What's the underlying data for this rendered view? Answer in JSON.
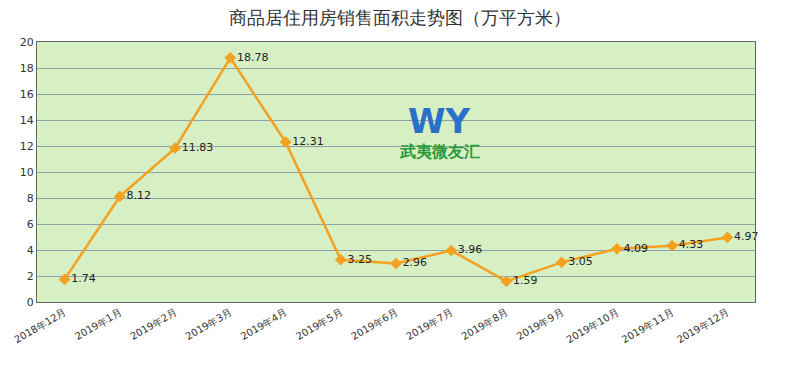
{
  "chart_data": {
    "type": "line",
    "title": "商品居住用房销售面积走势图（万平方米）",
    "categories": [
      "2018年12月",
      "2019年1月",
      "2019年2月",
      "2019年3月",
      "2019年4月",
      "2019年5月",
      "2019年6月",
      "2019年7月",
      "2019年8月",
      "2019年9月",
      "2019年10月",
      "2019年11月",
      "2019年12月"
    ],
    "values": [
      1.74,
      8.12,
      11.83,
      18.78,
      12.31,
      3.25,
      2.96,
      3.96,
      1.59,
      3.05,
      4.09,
      4.33,
      4.97
    ],
    "color": "#f4a020",
    "marker": "diamond",
    "line_style": "solid",
    "data_labels": true,
    "ylim": [
      0,
      20
    ],
    "yticks": [
      0,
      2,
      4,
      6,
      8,
      10,
      12,
      14,
      16,
      18,
      20
    ],
    "grid": true,
    "annotations": [
      "WY",
      "武夷微友汇"
    ]
  }
}
